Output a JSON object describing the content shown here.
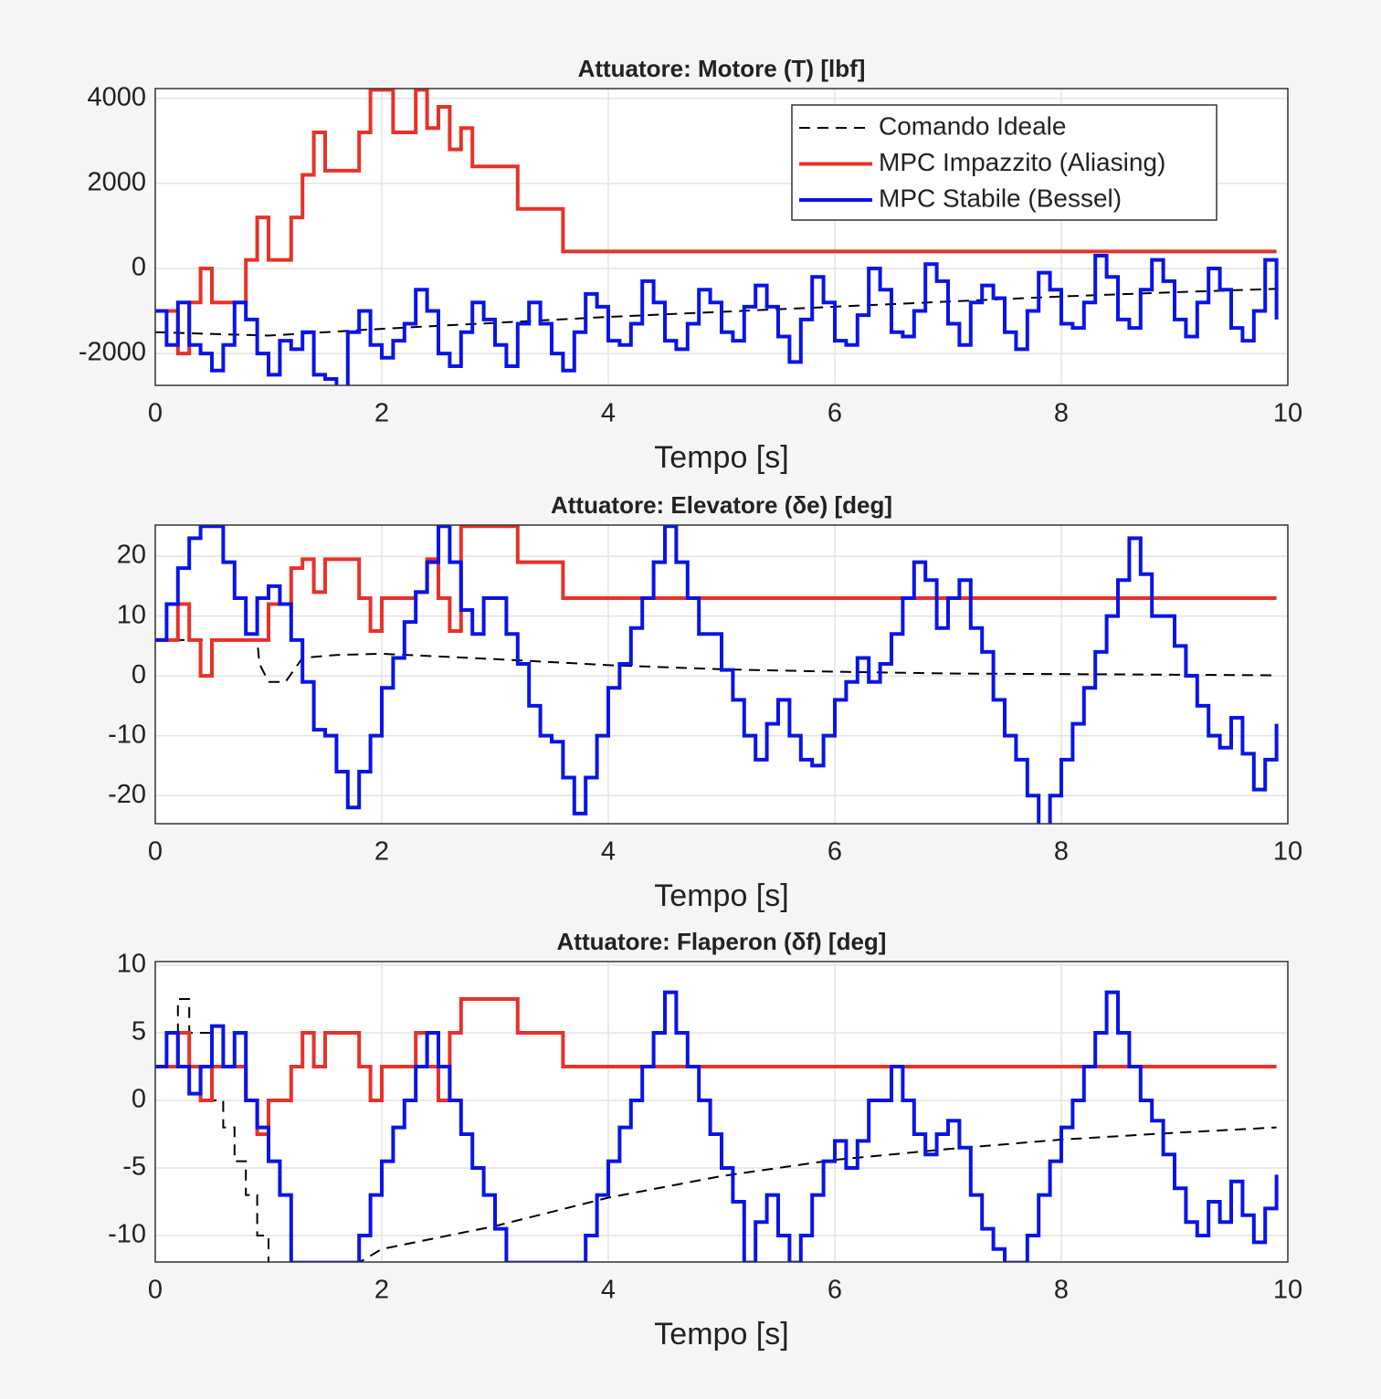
{
  "chart_data": [
    {
      "type": "line",
      "title": "Attuatore: Motore (T) [lbf]",
      "x_label": "Tempo [s]",
      "x": [
        0,
        0.1,
        0.2,
        0.3,
        0.4,
        0.5,
        0.6,
        0.7,
        0.8,
        0.9,
        1,
        1.1,
        1.2,
        1.3,
        1.4,
        1.5,
        1.6,
        1.7,
        1.8,
        1.9,
        2,
        2.1,
        2.2,
        2.3,
        2.4,
        2.5,
        2.6,
        2.7,
        2.8,
        2.9,
        3,
        3.1,
        3.2,
        3.3,
        3.4,
        3.5,
        3.6,
        3.7,
        3.8,
        3.9,
        4,
        4.1,
        4.2,
        4.3,
        4.4,
        4.5,
        4.6,
        4.7,
        4.8,
        4.9,
        5,
        5.1,
        5.2,
        5.3,
        5.4,
        5.5,
        5.6,
        5.7,
        5.8,
        5.9,
        6,
        6.1,
        6.2,
        6.3,
        6.4,
        6.5,
        6.6,
        6.7,
        6.8,
        6.9,
        7,
        7.1,
        7.2,
        7.3,
        7.4,
        7.5,
        7.6,
        7.7,
        7.8,
        7.9,
        8,
        8.1,
        8.2,
        8.3,
        8.4,
        8.5,
        8.6,
        8.7,
        8.8,
        8.9,
        9,
        9.1,
        9.2,
        9.3,
        9.4,
        9.5,
        9.6,
        9.7,
        9.8,
        9.9
      ],
      "xlim": [
        0,
        10
      ],
      "xticks": [
        0,
        2,
        4,
        6,
        8,
        10
      ],
      "ylim": [
        -2750,
        4230
      ],
      "yticks": [
        -2000,
        0,
        2000,
        4000
      ],
      "grid": true,
      "legend": "northeast",
      "series": [
        {
          "name": "Comando Ideale",
          "color": "#000000",
          "dashed": true,
          "step": false,
          "x": [
            0,
            1,
            2,
            3,
            4,
            5,
            6,
            7,
            8,
            9,
            9.9
          ],
          "values": [
            -1500,
            -1580,
            -1420,
            -1280,
            -1140,
            -1020,
            -900,
            -780,
            -660,
            -560,
            -480
          ]
        },
        {
          "name": "MPC Impazzito (Aliasing)",
          "color": "#e8312a",
          "step": true,
          "values": [
            -1000,
            -1000,
            -2000,
            -800,
            0,
            -800,
            -800,
            -800,
            200,
            1200,
            200,
            200,
            1200,
            2200,
            3200,
            2300,
            2300,
            2300,
            3200,
            4200,
            4200,
            3200,
            3200,
            4200,
            3300,
            3800,
            2800,
            3300,
            2400,
            2400,
            2400,
            2400,
            1400,
            1400,
            1400,
            1400,
            400,
            400,
            400,
            400,
            400,
            400,
            400,
            400,
            400,
            400,
            400,
            400,
            400,
            400,
            400,
            400,
            400,
            400,
            400,
            400,
            400,
            400,
            400,
            400,
            400,
            400,
            400,
            400,
            400,
            400,
            400,
            400,
            400,
            400,
            400,
            400,
            400,
            400,
            400,
            400,
            400,
            400,
            400,
            400,
            400,
            400,
            400,
            400,
            400,
            400,
            400,
            400,
            400,
            400,
            400,
            400,
            400,
            400,
            400,
            400,
            400,
            400,
            400,
            400
          ]
        },
        {
          "name": "MPC Stabile (Bessel)",
          "color": "#0a14e6",
          "step": true,
          "values": [
            -1000,
            -1800,
            -800,
            -1800,
            -2000,
            -2400,
            -1800,
            -800,
            -1200,
            -2000,
            -2500,
            -1700,
            -1900,
            -1500,
            -2500,
            -2600,
            -2800,
            -1500,
            -1000,
            -1800,
            -2100,
            -1700,
            -1300,
            -500,
            -1000,
            -2000,
            -2300,
            -1500,
            -800,
            -1200,
            -1800,
            -2300,
            -1300,
            -800,
            -1300,
            -2000,
            -2400,
            -1500,
            -600,
            -900,
            -1700,
            -1800,
            -1300,
            -300,
            -800,
            -1700,
            -1900,
            -1300,
            -500,
            -800,
            -1500,
            -1700,
            -900,
            -400,
            -900,
            -1600,
            -2200,
            -1200,
            -200,
            -800,
            -1700,
            -1800,
            -1100,
            0,
            -500,
            -1500,
            -1600,
            -1000,
            100,
            -300,
            -1300,
            -1800,
            -800,
            -400,
            -700,
            -1500,
            -1900,
            -1000,
            -100,
            -500,
            -1300,
            -1400,
            -800,
            300,
            -200,
            -1200,
            -1400,
            -500,
            200,
            -300,
            -1200,
            -1600,
            -800,
            0,
            -500,
            -1400,
            -1700,
            -1000,
            200,
            -1200
          ]
        }
      ]
    },
    {
      "type": "line",
      "title": "Attuatore: Elevatore (δe) [deg]",
      "x_label": "Tempo [s]",
      "x": [
        0,
        0.1,
        0.2,
        0.3,
        0.4,
        0.5,
        0.6,
        0.7,
        0.8,
        0.9,
        1,
        1.1,
        1.2,
        1.3,
        1.4,
        1.5,
        1.6,
        1.7,
        1.8,
        1.9,
        2,
        2.1,
        2.2,
        2.3,
        2.4,
        2.5,
        2.6,
        2.7,
        2.8,
        2.9,
        3,
        3.1,
        3.2,
        3.3,
        3.4,
        3.5,
        3.6,
        3.7,
        3.8,
        3.9,
        4,
        4.1,
        4.2,
        4.3,
        4.4,
        4.5,
        4.6,
        4.7,
        4.8,
        4.9,
        5,
        5.1,
        5.2,
        5.3,
        5.4,
        5.5,
        5.6,
        5.7,
        5.8,
        5.9,
        6,
        6.1,
        6.2,
        6.3,
        6.4,
        6.5,
        6.6,
        6.7,
        6.8,
        6.9,
        7,
        7.1,
        7.2,
        7.3,
        7.4,
        7.5,
        7.6,
        7.7,
        7.8,
        7.9,
        8,
        8.1,
        8.2,
        8.3,
        8.4,
        8.5,
        8.6,
        8.7,
        8.8,
        8.9,
        9,
        9.1,
        9.2,
        9.3,
        9.4,
        9.5,
        9.6,
        9.7,
        9.8,
        9.9
      ],
      "xlim": [
        0,
        10
      ],
      "xticks": [
        0,
        2,
        4,
        6,
        8,
        10
      ],
      "ylim": [
        -24.7,
        25.2
      ],
      "yticks": [
        -20,
        -10,
        0,
        10,
        20
      ],
      "grid": true,
      "series": [
        {
          "color": "#000000",
          "dashed": true,
          "step": false,
          "x": [
            0,
            0.9,
            0.92,
            1,
            1.15,
            1.3,
            1.6,
            2,
            3,
            4,
            5,
            6,
            7,
            8,
            9,
            9.9
          ],
          "values": [
            6,
            6,
            2,
            -1,
            -1,
            3,
            3.5,
            3.7,
            2.8,
            1.8,
            1.1,
            0.7,
            0.4,
            0.3,
            0.2,
            0.1
          ]
        },
        {
          "color": "#e8312a",
          "step": true,
          "values": [
            6,
            6,
            12,
            6,
            0,
            6,
            6,
            6,
            6,
            6,
            12,
            12,
            18,
            19.5,
            14,
            19.5,
            19.5,
            19.5,
            13,
            7.5,
            13,
            13,
            13,
            14,
            19.5,
            13,
            7.5,
            25,
            25,
            25,
            25,
            25,
            19,
            19,
            19,
            19,
            13,
            13,
            13,
            13,
            13,
            13,
            13,
            13,
            13,
            13,
            13,
            13,
            13,
            13,
            13,
            13,
            13,
            13,
            13,
            13,
            13,
            13,
            13,
            13,
            13,
            13,
            13,
            13,
            13,
            13,
            13,
            13,
            13,
            13,
            13,
            13,
            13,
            13,
            13,
            13,
            13,
            13,
            13,
            13,
            13,
            13,
            13,
            13,
            13,
            13,
            13,
            13,
            13,
            13,
            13,
            13,
            13,
            13,
            13,
            13,
            13,
            13,
            13,
            13
          ]
        },
        {
          "color": "#0a14e6",
          "step": true,
          "values": [
            6,
            12,
            18,
            23,
            25,
            25,
            19,
            13,
            7,
            13,
            15,
            12,
            6,
            -1,
            -9,
            -10,
            -16,
            -22,
            -16,
            -10,
            -2,
            3,
            9,
            14,
            19,
            25,
            19,
            11,
            7,
            13,
            13,
            7,
            2,
            -5,
            -10,
            -11,
            -17,
            -23,
            -17,
            -10,
            -2,
            2,
            8,
            13,
            19,
            25,
            19,
            13,
            7,
            7,
            1,
            -4,
            -10,
            -14,
            -8,
            -4,
            -10,
            -14,
            -15,
            -10,
            -4,
            -1,
            3,
            -1,
            2,
            7,
            13,
            19,
            16,
            8,
            13,
            16,
            8,
            4,
            -4,
            -10,
            -14,
            -20,
            -25,
            -20,
            -14,
            -8,
            -2,
            4,
            10,
            16,
            23,
            17,
            10,
            10,
            5,
            0,
            -5,
            -10,
            -12,
            -7,
            -13,
            -19,
            -14,
            -8
          ]
        }
      ]
    },
    {
      "type": "line",
      "title": "Attuatore: Flaperon (δf) [deg]",
      "x_label": "Tempo [s]",
      "x": [
        0,
        0.1,
        0.2,
        0.3,
        0.4,
        0.5,
        0.6,
        0.7,
        0.8,
        0.9,
        1,
        1.1,
        1.2,
        1.3,
        1.4,
        1.5,
        1.6,
        1.7,
        1.8,
        1.9,
        2,
        2.1,
        2.2,
        2.3,
        2.4,
        2.5,
        2.6,
        2.7,
        2.8,
        2.9,
        3,
        3.1,
        3.2,
        3.3,
        3.4,
        3.5,
        3.6,
        3.7,
        3.8,
        3.9,
        4,
        4.1,
        4.2,
        4.3,
        4.4,
        4.5,
        4.6,
        4.7,
        4.8,
        4.9,
        5,
        5.1,
        5.2,
        5.3,
        5.4,
        5.5,
        5.6,
        5.7,
        5.8,
        5.9,
        6,
        6.1,
        6.2,
        6.3,
        6.4,
        6.5,
        6.6,
        6.7,
        6.8,
        6.9,
        7,
        7.1,
        7.2,
        7.3,
        7.4,
        7.5,
        7.6,
        7.7,
        7.8,
        7.9,
        8,
        8.1,
        8.2,
        8.3,
        8.4,
        8.5,
        8.6,
        8.7,
        8.8,
        8.9,
        9,
        9.1,
        9.2,
        9.3,
        9.4,
        9.5,
        9.6,
        9.7,
        9.8,
        9.9
      ],
      "xlim": [
        0,
        10
      ],
      "xticks": [
        0,
        2,
        4,
        6,
        8,
        10
      ],
      "ylim": [
        -11.96,
        10.27
      ],
      "yticks": [
        -10,
        -5,
        0,
        5,
        10
      ],
      "grid": true,
      "series": [
        {
          "color": "#000000",
          "dashed": true,
          "step": false,
          "x": [
            0,
            0.2,
            0.2,
            0.3,
            0.3,
            0.5,
            0.5,
            0.6,
            0.6,
            0.7,
            0.7,
            0.8,
            0.8,
            0.9,
            0.9,
            1,
            1,
            1.8,
            2,
            3,
            4,
            5,
            6,
            7,
            8,
            9,
            9.9
          ],
          "values": [
            2.5,
            2.5,
            7.5,
            7.5,
            5,
            5,
            0,
            0,
            -2,
            -2,
            -4.5,
            -4.5,
            -7,
            -7,
            -10,
            -10,
            -12,
            -12,
            -11,
            -9.3,
            -7.2,
            -5.6,
            -4.4,
            -3.6,
            -2.9,
            -2.4,
            -2
          ]
        },
        {
          "color": "#e8312a",
          "step": true,
          "values": [
            2.5,
            2.5,
            5,
            2.5,
            0,
            2.5,
            2.5,
            2.5,
            0,
            -2.5,
            0,
            0,
            2.5,
            5,
            2.5,
            5,
            5,
            5,
            2.5,
            0,
            2.5,
            2.5,
            2.5,
            5,
            2.5,
            0,
            5,
            7.5,
            7.5,
            7.5,
            7.5,
            7.5,
            5,
            5,
            5,
            5,
            2.5,
            2.5,
            2.5,
            2.5,
            2.5,
            2.5,
            2.5,
            2.5,
            2.5,
            2.5,
            2.5,
            2.5,
            2.5,
            2.5,
            2.5,
            2.5,
            2.5,
            2.5,
            2.5,
            2.5,
            2.5,
            2.5,
            2.5,
            2.5,
            2.5,
            2.5,
            2.5,
            2.5,
            2.5,
            2.5,
            2.5,
            2.5,
            2.5,
            2.5,
            2.5,
            2.5,
            2.5,
            2.5,
            2.5,
            2.5,
            2.5,
            2.5,
            2.5,
            2.5,
            2.5,
            2.5,
            2.5,
            2.5,
            2.5,
            2.5,
            2.5,
            2.5,
            2.5,
            2.5,
            2.5,
            2.5,
            2.5,
            2.5,
            2.5,
            2.5,
            2.5,
            2.5,
            2.5,
            2.5
          ]
        },
        {
          "color": "#0a14e6",
          "step": true,
          "values": [
            2.5,
            5,
            2.5,
            0.5,
            2.5,
            5.5,
            2.5,
            5,
            0,
            -2,
            -4.5,
            -7,
            -12,
            -12,
            -12,
            -12,
            -12,
            -12,
            -10,
            -7,
            -4.5,
            -2,
            0,
            2.5,
            5,
            2.5,
            0,
            -2.5,
            -5,
            -7,
            -9.5,
            -12,
            -12,
            -12,
            -12,
            -12,
            -12,
            -12,
            -10,
            -7,
            -4.5,
            -2,
            0,
            2.5,
            5,
            8,
            5,
            2.5,
            0,
            -2.5,
            -5,
            -7.5,
            -12,
            -9,
            -7,
            -10,
            -12,
            -10,
            -7,
            -4.5,
            -3,
            -5,
            -3,
            0,
            0,
            2.5,
            0,
            -2.5,
            -4,
            -2.5,
            -1.5,
            -3.5,
            -7,
            -9.5,
            -11,
            -12,
            -12,
            -10,
            -7,
            -4.5,
            -2,
            0,
            2.5,
            5,
            8,
            5,
            2.5,
            0,
            -1.5,
            -4,
            -6.5,
            -9,
            -10,
            -7.5,
            -9,
            -6,
            -8.5,
            -10.5,
            -8,
            -5.5
          ]
        }
      ]
    }
  ]
}
